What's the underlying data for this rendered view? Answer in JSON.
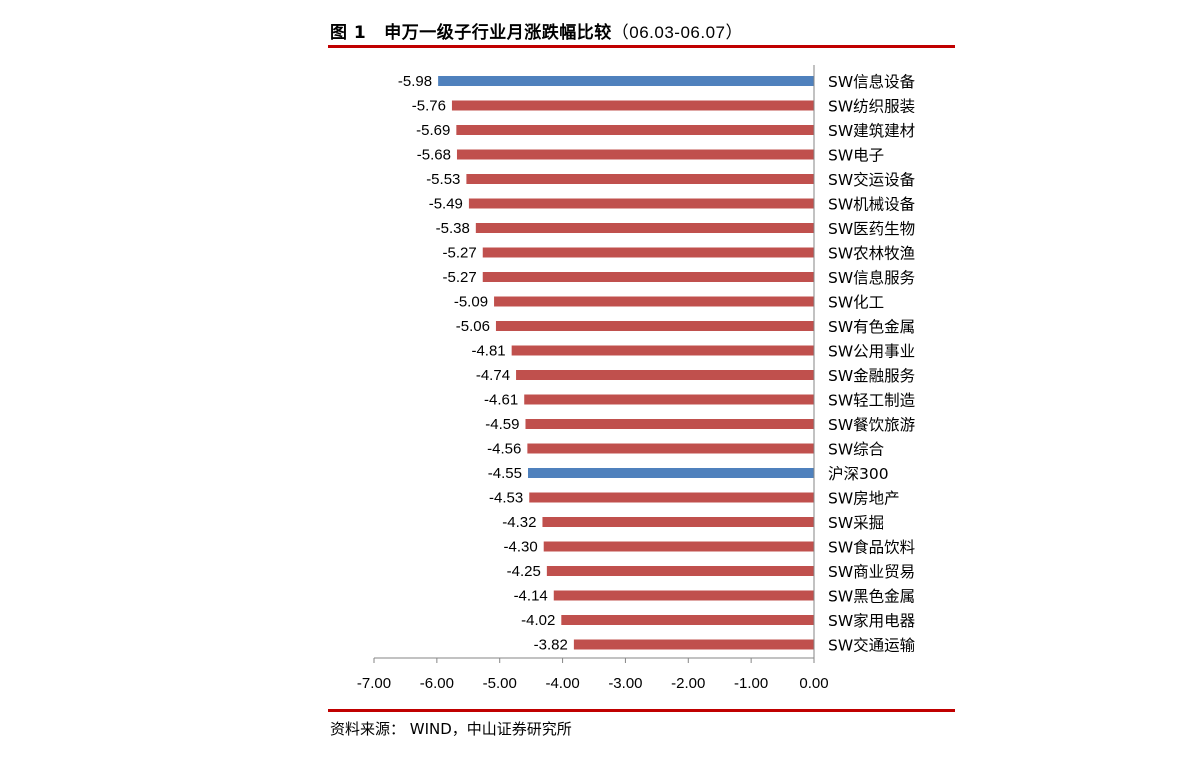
{
  "header": {
    "figure_no": "图 1",
    "title": "申万一级子行业月涨跌幅比较",
    "date_range": "（06.03-06.07）"
  },
  "source": {
    "text": "资料来源：  WIND，中山证券研究所"
  },
  "colors": {
    "accent_rule": "#c00000",
    "bar_default": "#c0504d",
    "bar_highlight": "#4f81bd"
  },
  "chart_data": {
    "type": "bar",
    "orientation": "horizontal",
    "title": "",
    "xlabel": "",
    "ylabel": "",
    "xlim": [
      -7.0,
      0.0
    ],
    "x_ticks": [
      -7.0,
      -6.0,
      -5.0,
      -4.0,
      -3.0,
      -2.0,
      -1.0,
      0.0
    ],
    "x_tick_labels": [
      "-7.00",
      "-6.00",
      "-5.00",
      "-4.00",
      "-3.00",
      "-2.00",
      "-1.00",
      "0.00"
    ],
    "grid": false,
    "legend": "none",
    "categories": [
      "SW信息设备",
      "SW纺织服装",
      "SW建筑建材",
      "SW电子",
      "SW交运设备",
      "SW机械设备",
      "SW医药生物",
      "SW农林牧渔",
      "SW信息服务",
      "SW化工",
      "SW有色金属",
      "SW公用事业",
      "SW金融服务",
      "SW轻工制造",
      "SW餐饮旅游",
      "SW综合",
      "沪深300",
      "SW房地产",
      "SW采掘",
      "SW食品饮料",
      "SW商业贸易",
      "SW黑色金属",
      "SW家用电器",
      "SW交通运输"
    ],
    "values": [
      -5.98,
      -5.76,
      -5.69,
      -5.68,
      -5.53,
      -5.49,
      -5.38,
      -5.27,
      -5.27,
      -5.09,
      -5.06,
      -4.81,
      -4.74,
      -4.61,
      -4.59,
      -4.56,
      -4.55,
      -4.53,
      -4.32,
      -4.3,
      -4.25,
      -4.14,
      -4.02,
      -3.82
    ],
    "value_labels": [
      "-5.98",
      "-5.76",
      "-5.69",
      "-5.68",
      "-5.53",
      "-5.49",
      "-5.38",
      "-5.27",
      "-5.27",
      "-5.09",
      "-5.06",
      "-4.81",
      "-4.74",
      "-4.61",
      "-4.59",
      "-4.56",
      "-4.55",
      "-4.53",
      "-4.32",
      "-4.30",
      "-4.25",
      "-4.14",
      "-4.02",
      "-3.82"
    ],
    "highlighted_categories": [
      "SW信息设备",
      "沪深300"
    ]
  }
}
